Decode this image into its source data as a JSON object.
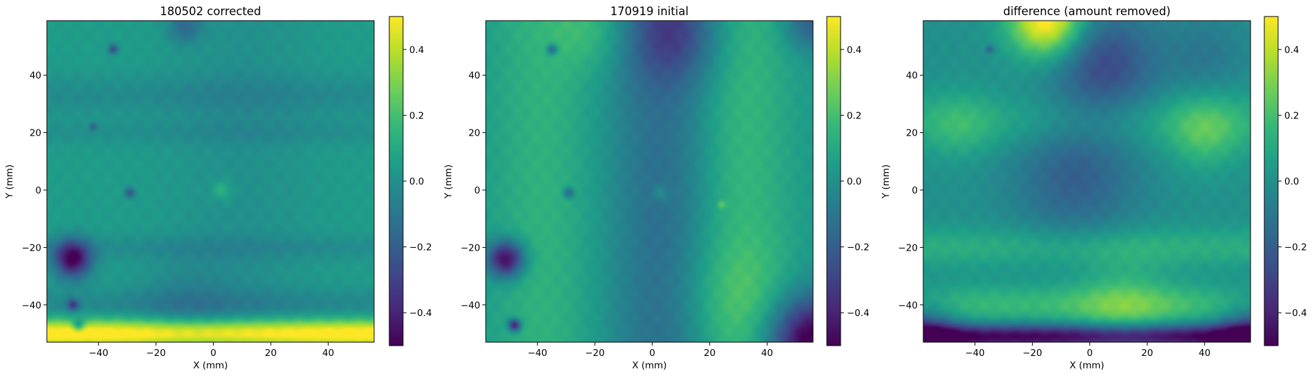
{
  "figure": {
    "colormap": "viridis",
    "colormap_stops": [
      "#440154",
      "#482878",
      "#3e4989",
      "#31688e",
      "#26828e",
      "#1f9e89",
      "#35b779",
      "#6ece58",
      "#b5de2b",
      "#fde725"
    ],
    "background": "#ffffff"
  },
  "chart_data": [
    {
      "type": "heatmap",
      "title": "180502 corrected",
      "xlabel": "X (mm)",
      "ylabel": "Y (mm)",
      "xlim": [
        -58,
        56
      ],
      "ylim": [
        -53,
        59
      ],
      "xticks": [
        -40,
        -20,
        0,
        20,
        40
      ],
      "yticks": [
        -40,
        -20,
        0,
        20,
        40
      ],
      "xtick_labels": [
        "−40",
        "−20",
        "0",
        "20",
        "40"
      ],
      "ytick_labels": [
        "−40",
        "−20",
        "0",
        "20",
        "40"
      ],
      "colorbar": {
        "range": [
          -0.5,
          0.5
        ],
        "ticks": [
          -0.4,
          -0.2,
          0.0,
          0.2,
          0.4
        ],
        "tick_labels": [
          "−0.4",
          "−0.2",
          "0.0",
          "0.2",
          "0.4"
        ]
      },
      "field": {
        "base": 0.05,
        "features": [
          {
            "shape": "band_y",
            "c": -50,
            "w": 3.5,
            "a": 0.5
          },
          {
            "shape": "band_y",
            "c": -40,
            "w": 4,
            "a": -0.08
          },
          {
            "shape": "band_y",
            "c": 33,
            "w": 5,
            "a": -0.07
          },
          {
            "shape": "band_y",
            "c": 20,
            "w": 3,
            "a": -0.05
          },
          {
            "shape": "band_y",
            "c": -20,
            "w": 3,
            "a": -0.06
          },
          {
            "shape": "band_x",
            "c": 10,
            "w": 18,
            "a": -0.05
          },
          {
            "shape": "blob",
            "x": -49,
            "y": -24,
            "r": 4.5,
            "a": -0.55
          },
          {
            "shape": "blob",
            "x": -49,
            "y": -40,
            "r": 1.5,
            "a": -0.3
          },
          {
            "shape": "blob",
            "x": -47,
            "y": -47,
            "r": 1.5,
            "a": -0.3
          },
          {
            "shape": "blob",
            "x": -35,
            "y": 49,
            "r": 1.2,
            "a": -0.3
          },
          {
            "shape": "blob",
            "x": -29,
            "y": -1,
            "r": 1.3,
            "a": -0.25
          },
          {
            "shape": "blob",
            "x": -42,
            "y": 22,
            "r": 0.9,
            "a": -0.2
          },
          {
            "shape": "blob",
            "x": 3,
            "y": 0,
            "r": 2.5,
            "a": 0.12
          },
          {
            "shape": "blob",
            "x": -10,
            "y": -40,
            "r": 12,
            "a": -0.08
          },
          {
            "shape": "blob",
            "x": -10,
            "y": 57,
            "r": 4,
            "a": -0.18
          }
        ]
      }
    },
    {
      "type": "heatmap",
      "title": "170919 initial",
      "xlabel": "X (mm)",
      "ylabel": "Y (mm)",
      "xlim": [
        -58,
        56
      ],
      "ylim": [
        -53,
        59
      ],
      "xticks": [
        -40,
        -20,
        0,
        20,
        40
      ],
      "yticks": [
        -40,
        -20,
        0,
        20,
        40
      ],
      "xtick_labels": [
        "−40",
        "−20",
        "0",
        "20",
        "40"
      ],
      "ytick_labels": [
        "−40",
        "−20",
        "0",
        "20",
        "40"
      ],
      "colorbar": {
        "range": [
          -0.5,
          0.5
        ],
        "ticks": [
          -0.4,
          -0.2,
          0.0,
          0.2,
          0.4
        ],
        "tick_labels": [
          "−0.4",
          "−0.2",
          "0.0",
          "0.2",
          "0.4"
        ]
      },
      "field": {
        "base": 0.02,
        "features": [
          {
            "shape": "band_x",
            "c": -38,
            "w": 14,
            "a": 0.12
          },
          {
            "shape": "band_x",
            "c": 5,
            "w": 14,
            "a": -0.17
          },
          {
            "shape": "band_x",
            "c": 30,
            "w": 13,
            "a": 0.16
          },
          {
            "shape": "blob",
            "x": 8,
            "y": 55,
            "r": 12,
            "a": -0.22
          },
          {
            "shape": "blob",
            "x": -20,
            "y": 56,
            "r": 10,
            "a": 0.12
          },
          {
            "shape": "blob",
            "x": 28,
            "y": -38,
            "r": 14,
            "a": 0.08
          },
          {
            "shape": "blob",
            "x": 56,
            "y": -53,
            "r": 11,
            "a": -0.6
          },
          {
            "shape": "blob",
            "x": 56,
            "y": 59,
            "r": 7,
            "a": -0.25
          },
          {
            "shape": "blob",
            "x": -51,
            "y": -24,
            "r": 4.5,
            "a": -0.55
          },
          {
            "shape": "blob",
            "x": -48,
            "y": -47,
            "r": 1.5,
            "a": -0.5
          },
          {
            "shape": "blob",
            "x": -35,
            "y": 49,
            "r": 1.3,
            "a": -0.3
          },
          {
            "shape": "blob",
            "x": -29,
            "y": -1,
            "r": 1.3,
            "a": -0.25
          },
          {
            "shape": "blob",
            "x": 3,
            "y": -1,
            "r": 2,
            "a": 0.1
          },
          {
            "shape": "blob",
            "x": 24,
            "y": -5,
            "r": 1,
            "a": 0.15
          }
        ]
      }
    },
    {
      "type": "heatmap",
      "title": "difference (amount removed)",
      "xlabel": "X (mm)",
      "ylabel": "Y (mm)",
      "xlim": [
        -58,
        56
      ],
      "ylim": [
        -53,
        59
      ],
      "xticks": [
        -40,
        -20,
        0,
        20,
        40
      ],
      "yticks": [
        -40,
        -20,
        0,
        20,
        40
      ],
      "xtick_labels": [
        "−40",
        "−20",
        "0",
        "20",
        "40"
      ],
      "ytick_labels": [
        "−40",
        "−20",
        "0",
        "20",
        "40"
      ],
      "colorbar": {
        "range": [
          -0.5,
          0.5
        ],
        "ticks": [
          -0.4,
          -0.2,
          0.0,
          0.2,
          0.4
        ],
        "tick_labels": [
          "−0.4",
          "−0.2",
          "0.0",
          "0.2",
          "0.4"
        ]
      },
      "field": {
        "base": 0.0,
        "features": [
          {
            "shape": "blob",
            "x": -15,
            "y": 59,
            "r": 9,
            "a": 0.55
          },
          {
            "shape": "blob",
            "x": 5,
            "y": 44,
            "r": 13,
            "a": -0.27
          },
          {
            "shape": "blob",
            "x": -5,
            "y": 5,
            "r": 15,
            "a": -0.2
          },
          {
            "shape": "band_y",
            "c": 24,
            "w": 7,
            "a": 0.1
          },
          {
            "shape": "blob",
            "x": 40,
            "y": 20,
            "r": 9,
            "a": 0.18
          },
          {
            "shape": "blob",
            "x": -45,
            "y": 22,
            "r": 8,
            "a": 0.1
          },
          {
            "shape": "band_y",
            "c": -20,
            "w": 5,
            "a": 0.12
          },
          {
            "shape": "band_y",
            "c": -40,
            "w": 5,
            "a": 0.17
          },
          {
            "shape": "blob",
            "x": 12,
            "y": -40,
            "r": 12,
            "a": 0.15
          },
          {
            "shape": "band_y",
            "c": -51,
            "w": 3,
            "a": -0.5
          },
          {
            "shape": "blob",
            "x": 56,
            "y": -50,
            "r": 8,
            "a": -0.3
          },
          {
            "shape": "blob",
            "x": -58,
            "y": -50,
            "r": 8,
            "a": -0.3
          },
          {
            "shape": "blob",
            "x": 40,
            "y": 47,
            "r": 10,
            "a": -0.1
          },
          {
            "shape": "blob",
            "x": -35,
            "y": 49,
            "r": 1,
            "a": -0.2
          }
        ]
      }
    }
  ]
}
